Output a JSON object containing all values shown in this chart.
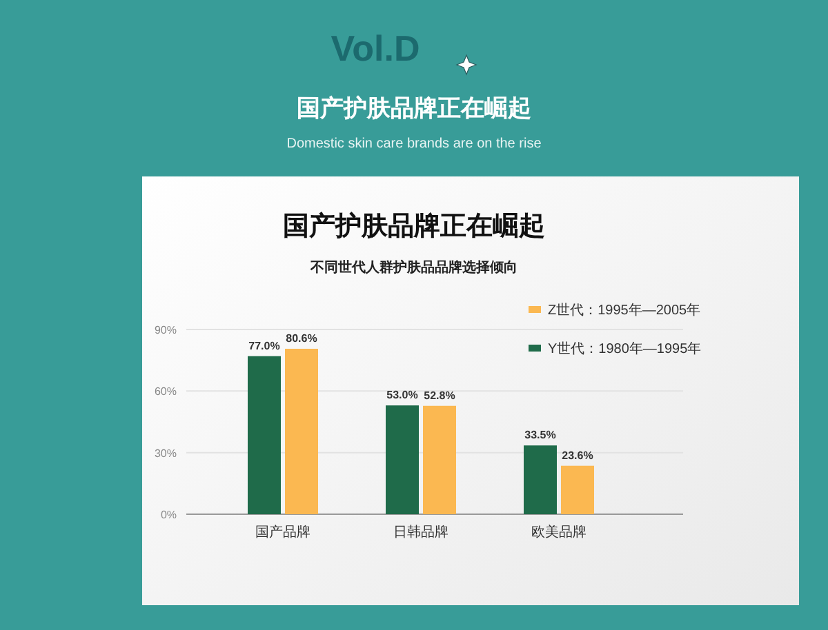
{
  "chart_data": {
    "type": "bar",
    "title": "国产护肤品牌正在崛起",
    "subtitle": "不同世代人群护肤品品牌选择倾向",
    "annotations": [
      "Vol.D",
      "国产护肤品牌正在崛起",
      "Domestic skin care brands are on the rise"
    ],
    "categories": [
      "国产品牌",
      "日韩品牌",
      "欧美品牌"
    ],
    "series": [
      {
        "name": "Y世代：1980年—1995年",
        "color": "#1f6b4a",
        "values": [
          77.0,
          53.0,
          33.5
        ]
      },
      {
        "name": "Z世代：1995年—2005年",
        "color": "#fbb851",
        "values": [
          80.6,
          52.8,
          23.6
        ]
      }
    ],
    "ylim": [
      0,
      90
    ],
    "yticks": [
      {
        "value": 0,
        "label": "0%"
      },
      {
        "value": 30,
        "label": "30%"
      },
      {
        "value": 60,
        "label": "60%"
      },
      {
        "value": 90,
        "label": "90%"
      }
    ],
    "value_labels": [
      [
        "77.0%",
        "53.0%",
        "33.5%"
      ],
      [
        "80.6%",
        "52.8%",
        "23.6%"
      ]
    ],
    "grid": "y",
    "legend": "top right"
  }
}
